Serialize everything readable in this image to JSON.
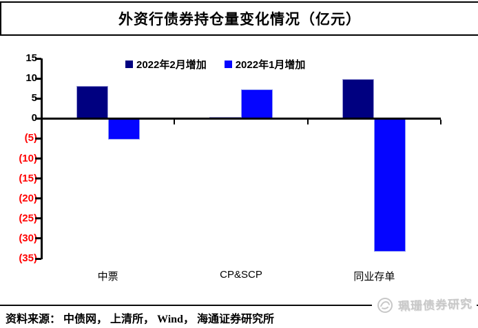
{
  "chart_data": {
    "type": "bar",
    "title": "外资行债券持仓量变化情况（亿元）",
    "xlabel": "",
    "ylabel": "",
    "categories": [
      "中票",
      "CP&SCP",
      "同业存单"
    ],
    "series": [
      {
        "name": "2022年2月增加",
        "color": "#000080",
        "border": "#9a9ad8",
        "values": [
          8.2,
          0.4,
          9.8
        ]
      },
      {
        "name": "2022年1月增加",
        "color": "#0505ff",
        "border": "#8f9bf2",
        "values": [
          -5.2,
          7.2,
          -33.3
        ]
      }
    ],
    "ylim": [
      -35,
      15
    ],
    "yticks": [
      {
        "label": "15",
        "value": 15
      },
      {
        "label": "10",
        "value": 10
      },
      {
        "label": "5",
        "value": 5
      },
      {
        "label": "0",
        "value": 0
      },
      {
        "label": "(5)",
        "value": -5
      },
      {
        "label": "(10)",
        "value": -10
      },
      {
        "label": "(15)",
        "value": -15
      },
      {
        "label": "(20)",
        "value": -20
      },
      {
        "label": "(25)",
        "value": -25
      },
      {
        "label": "(30)",
        "value": -30
      },
      {
        "label": "(35)",
        "value": -35
      }
    ],
    "grid": false,
    "legend_position": "top"
  },
  "axis": {
    "positive_color": "#000000",
    "negative_color": "#ff0000"
  },
  "footer": {
    "source_text": "资料来源： 中债网， 上清所， Wind， 海通证券研究所"
  },
  "watermark": {
    "icon": "coral-logo-icon",
    "text": "珮珊债券研究"
  }
}
